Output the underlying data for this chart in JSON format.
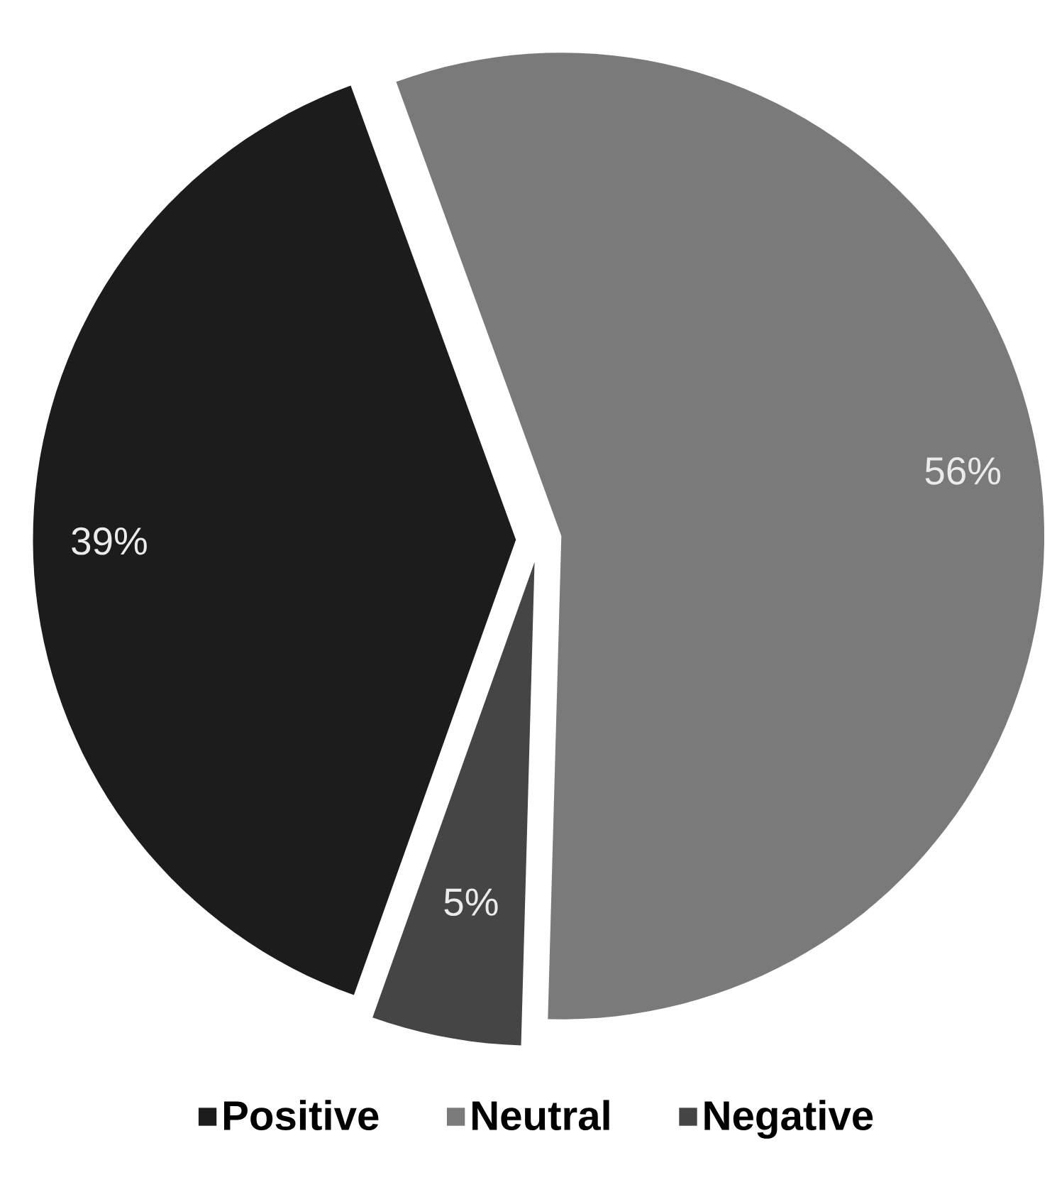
{
  "chart_data": {
    "type": "pie",
    "categories": [
      "Positive",
      "Neutral",
      "Negative"
    ],
    "values": [
      39,
      56,
      5
    ],
    "colors": [
      "#1c1c1c",
      "#7a7a7a",
      "#454545"
    ],
    "value_labels": [
      "39%",
      "56%",
      "5%"
    ],
    "legend": "bottom"
  }
}
